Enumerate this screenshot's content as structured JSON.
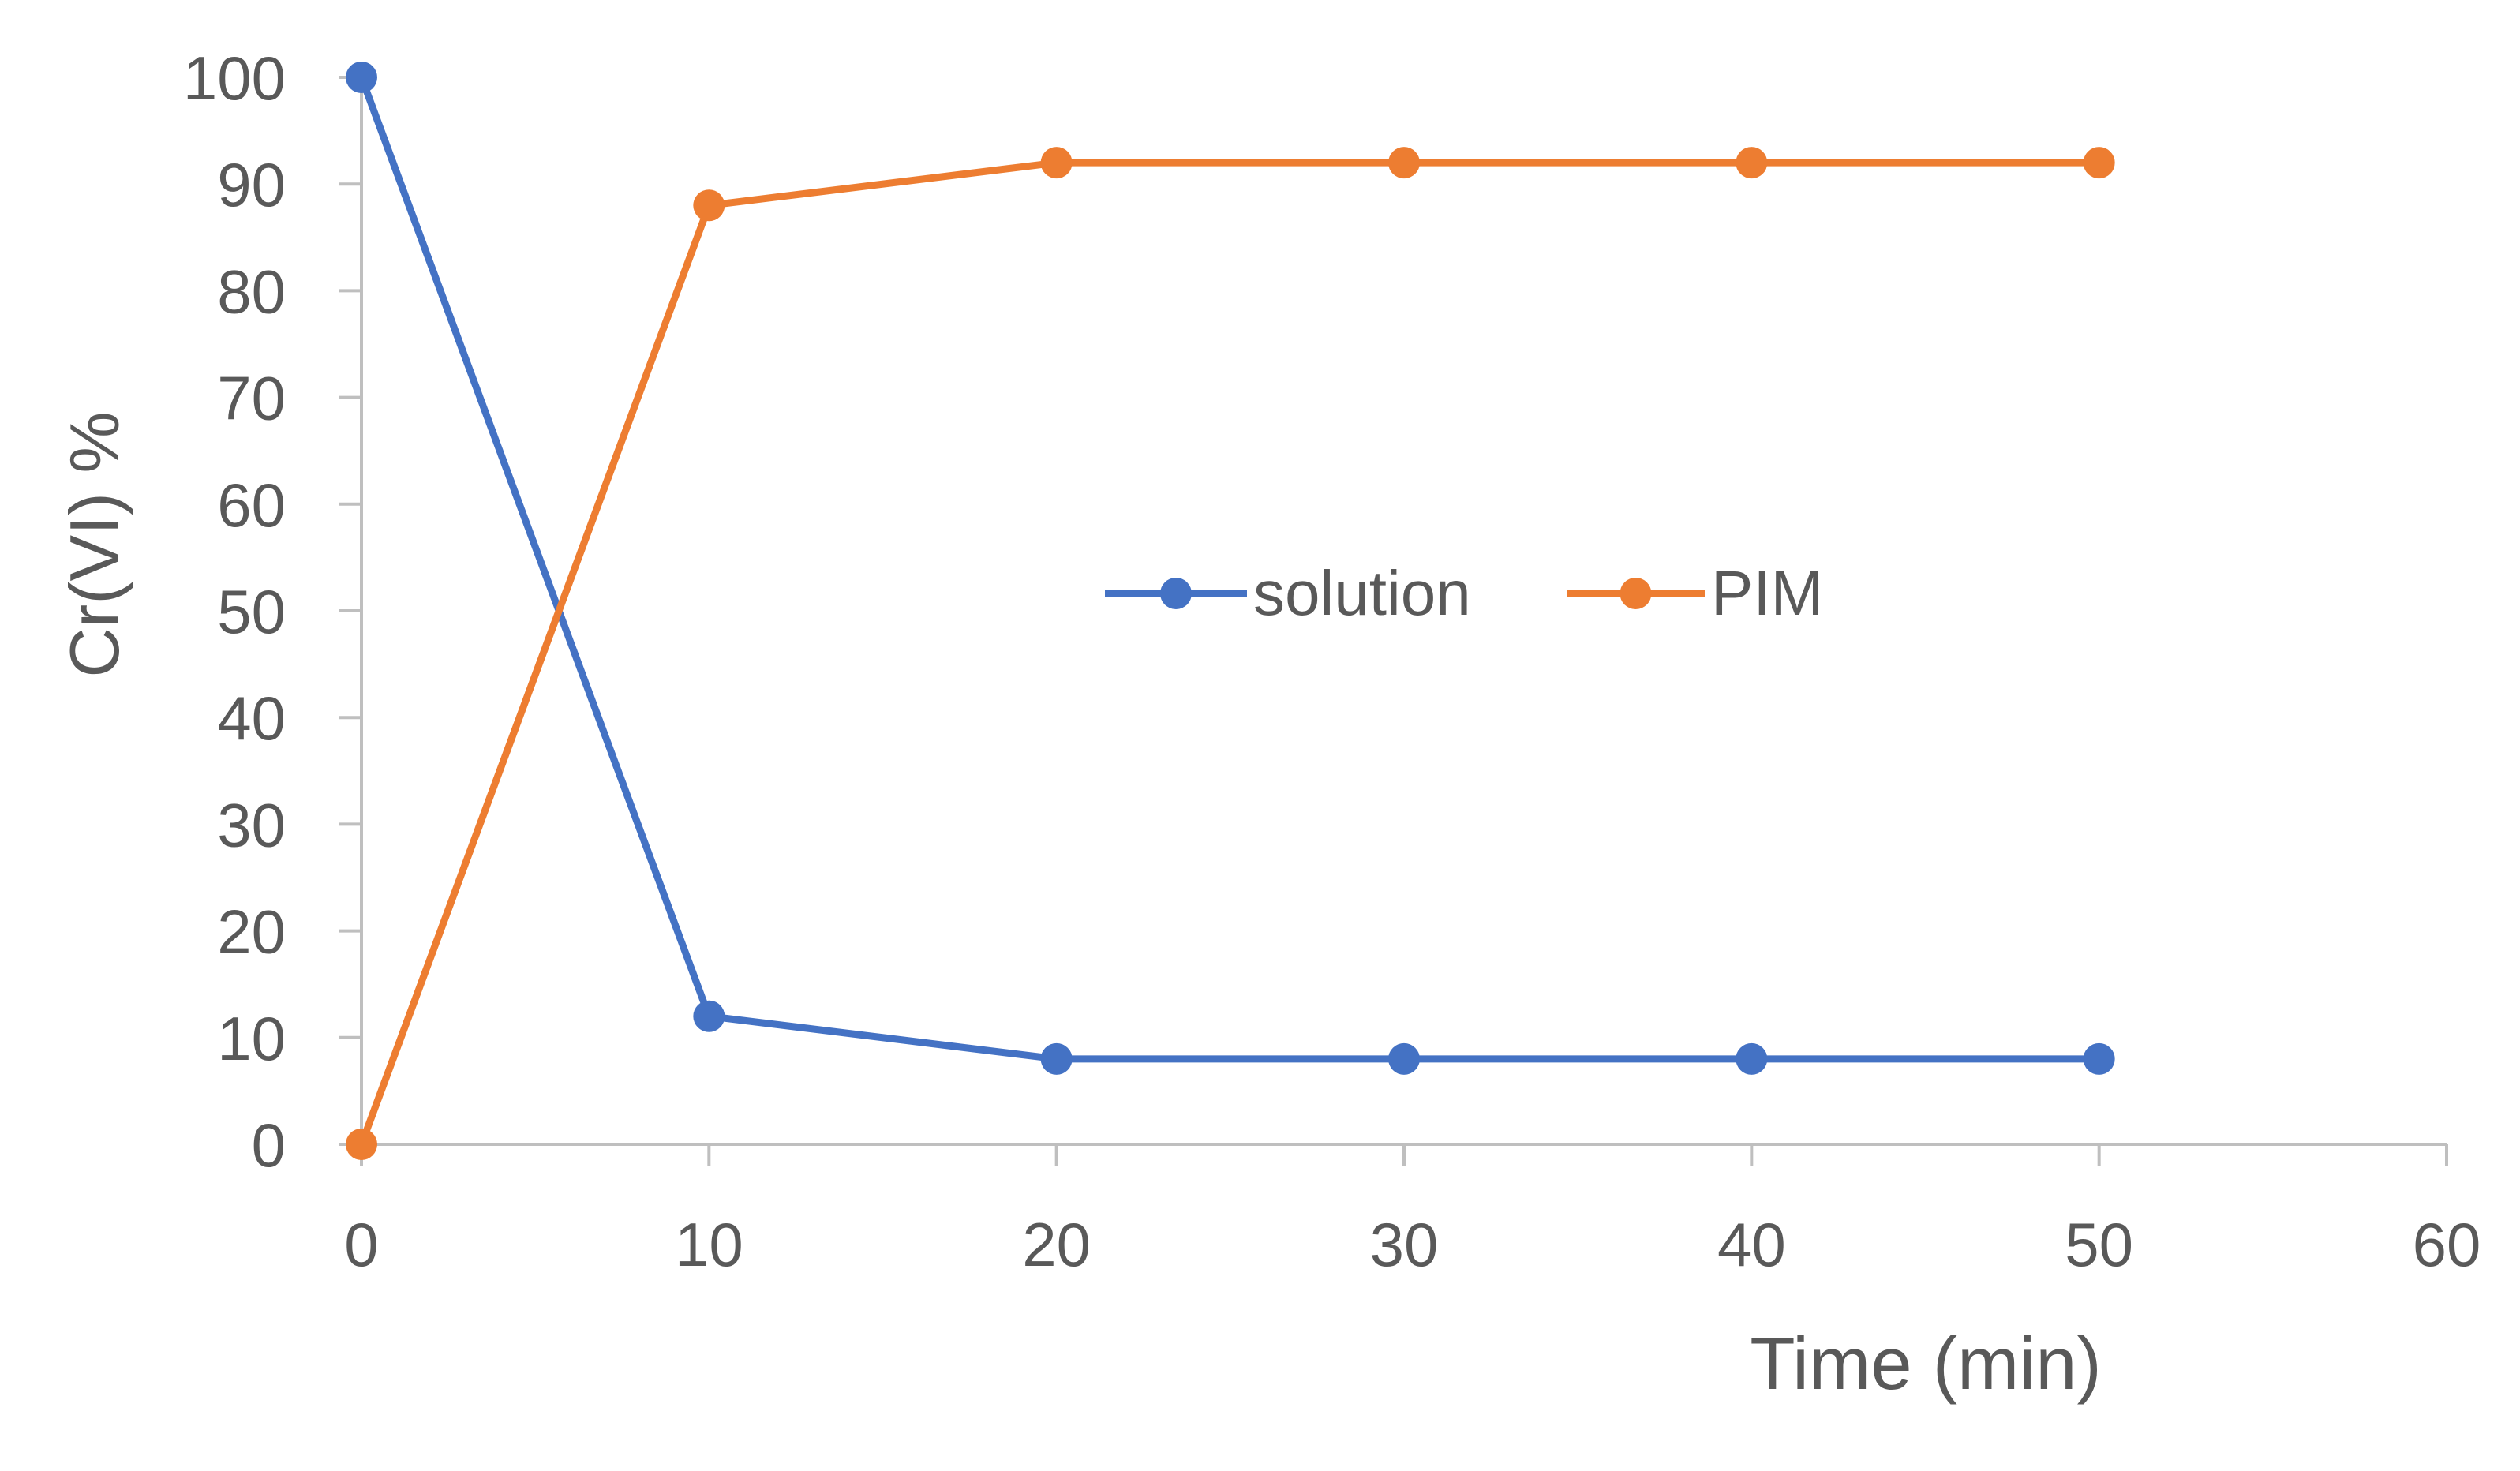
{
  "colors": {
    "background": "#ffffff",
    "axis": "#bfbfbf",
    "text": "#595959",
    "solution": "#4472C4",
    "pim": "#ED7D31"
  },
  "chart_data": {
    "type": "line",
    "title": "",
    "xlabel": "Time (min)",
    "ylabel": "Cr(VI) %",
    "xlim": [
      0,
      60
    ],
    "ylim": [
      0,
      100
    ],
    "xticks": [
      0,
      10,
      20,
      30,
      40,
      50,
      60
    ],
    "yticks": [
      0,
      10,
      20,
      30,
      40,
      50,
      60,
      70,
      80,
      90,
      100
    ],
    "grid": false,
    "legend_position": "center-right",
    "series": [
      {
        "name": "solution",
        "color": "#4472C4",
        "marker": "circle",
        "x": [
          0,
          10,
          20,
          30,
          40,
          50
        ],
        "y": [
          100,
          12,
          8,
          8,
          8,
          8
        ]
      },
      {
        "name": "PIM",
        "color": "#ED7D31",
        "marker": "circle",
        "x": [
          0,
          10,
          20,
          30,
          40,
          50
        ],
        "y": [
          0,
          88,
          92,
          92,
          92,
          92
        ]
      }
    ]
  }
}
